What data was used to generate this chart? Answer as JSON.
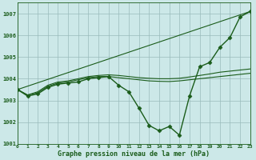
{
  "background_color": "#cce8e8",
  "grid_color": "#99bbbb",
  "line_color": "#1a5c1a",
  "title": "Graphe pression niveau de la mer (hPa)",
  "xlim": [
    0,
    23
  ],
  "ylim": [
    1001,
    1007.5
  ],
  "yticks": [
    1001,
    1002,
    1003,
    1004,
    1005,
    1006,
    1007
  ],
  "xticks": [
    0,
    1,
    2,
    3,
    4,
    5,
    6,
    7,
    8,
    9,
    10,
    11,
    12,
    13,
    14,
    15,
    16,
    17,
    18,
    19,
    20,
    21,
    22,
    23
  ],
  "xtick_labels": [
    "0",
    "1",
    "2",
    "3",
    "4",
    "5",
    "6",
    "7",
    "8",
    "9",
    "10",
    "11",
    "12",
    "13",
    "14",
    "15",
    "16",
    "17",
    "18",
    "19",
    "20",
    "21",
    "22",
    "23"
  ],
  "series_main": {
    "x": [
      0,
      1,
      2,
      3,
      4,
      5,
      6,
      7,
      8,
      9,
      10,
      11,
      12,
      13,
      14,
      15,
      16,
      17,
      18,
      19,
      20,
      21,
      22,
      23
    ],
    "y": [
      1003.5,
      1003.2,
      1003.3,
      1003.6,
      1003.75,
      1003.8,
      1003.85,
      1004.0,
      1004.05,
      1004.1,
      1003.7,
      1003.4,
      1002.65,
      1001.85,
      1001.6,
      1001.8,
      1001.4,
      1003.2,
      1004.55,
      1004.75,
      1005.45,
      1005.9,
      1006.85,
      1007.1
    ],
    "marker": "D",
    "markersize": 2.5,
    "linewidth": 1.0
  },
  "series_smooth1": {
    "x": [
      0,
      1,
      2,
      3,
      4,
      5,
      6,
      7,
      8,
      9,
      10,
      11,
      12,
      13,
      14,
      15,
      16,
      17,
      18,
      19,
      20,
      21,
      22,
      23
    ],
    "y": [
      1003.5,
      1003.25,
      1003.35,
      1003.65,
      1003.8,
      1003.85,
      1003.95,
      1004.05,
      1004.1,
      1004.1,
      1004.05,
      1004.0,
      1003.95,
      1003.9,
      1003.88,
      1003.87,
      1003.9,
      1003.95,
      1004.0,
      1004.05,
      1004.1,
      1004.15,
      1004.2,
      1004.25
    ],
    "linewidth": 0.8
  },
  "series_smooth2": {
    "x": [
      0,
      1,
      2,
      3,
      4,
      5,
      6,
      7,
      8,
      9,
      10,
      11,
      12,
      13,
      14,
      15,
      16,
      17,
      18,
      19,
      20,
      21,
      22,
      23
    ],
    "y": [
      1003.5,
      1003.25,
      1003.4,
      1003.7,
      1003.85,
      1003.9,
      1004.0,
      1004.1,
      1004.15,
      1004.18,
      1004.15,
      1004.1,
      1004.05,
      1004.02,
      1004.0,
      1004.0,
      1004.02,
      1004.08,
      1004.15,
      1004.22,
      1004.3,
      1004.35,
      1004.4,
      1004.45
    ],
    "linewidth": 0.8
  },
  "series_straight": {
    "x": [
      0,
      23
    ],
    "y": [
      1003.5,
      1007.1
    ],
    "linewidth": 0.8
  }
}
